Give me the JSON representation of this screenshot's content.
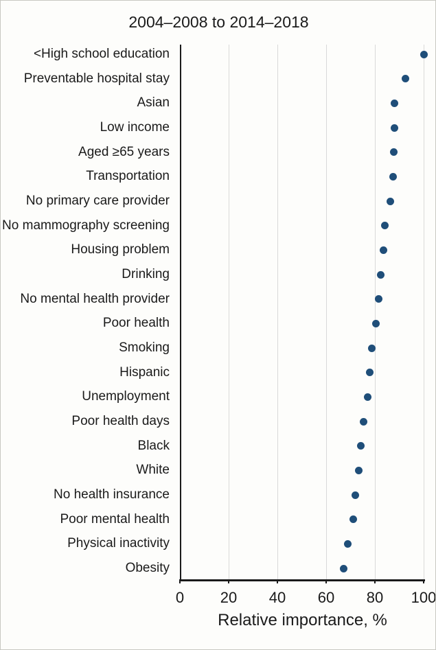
{
  "chart_data": {
    "type": "scatter",
    "variant": "horizontal-dot-plot",
    "title": "2004–2008 to 2014–2018",
    "xlabel": "Relative importance, %",
    "ylabel": "",
    "xlim": [
      0,
      100
    ],
    "xticks": [
      0,
      20,
      40,
      60,
      80,
      100
    ],
    "grid": "vertical-light-gray",
    "legend": "none",
    "dot_color": "#1F4E79",
    "categories": [
      "<High school education",
      "Preventable hospital stay",
      "Asian",
      "Low income",
      "Aged ≥65 years",
      "Transportation",
      "No primary care provider",
      "No mammography screening",
      "Housing problem",
      "Drinking",
      "No mental health provider",
      "Poor health",
      "Smoking",
      "Hispanic",
      "Unemployment",
      "Poor health days",
      "Black",
      "White",
      "No health insurance",
      "Poor mental health",
      "Physical inactivity",
      "Obesity"
    ],
    "values": [
      100,
      92.5,
      88.1,
      87.9,
      87.8,
      87.5,
      86.2,
      84.0,
      83.5,
      82.3,
      81.6,
      80.4,
      78.7,
      78.0,
      77.0,
      75.3,
      74.1,
      73.5,
      71.9,
      71.0,
      68.8,
      67.2
    ]
  }
}
